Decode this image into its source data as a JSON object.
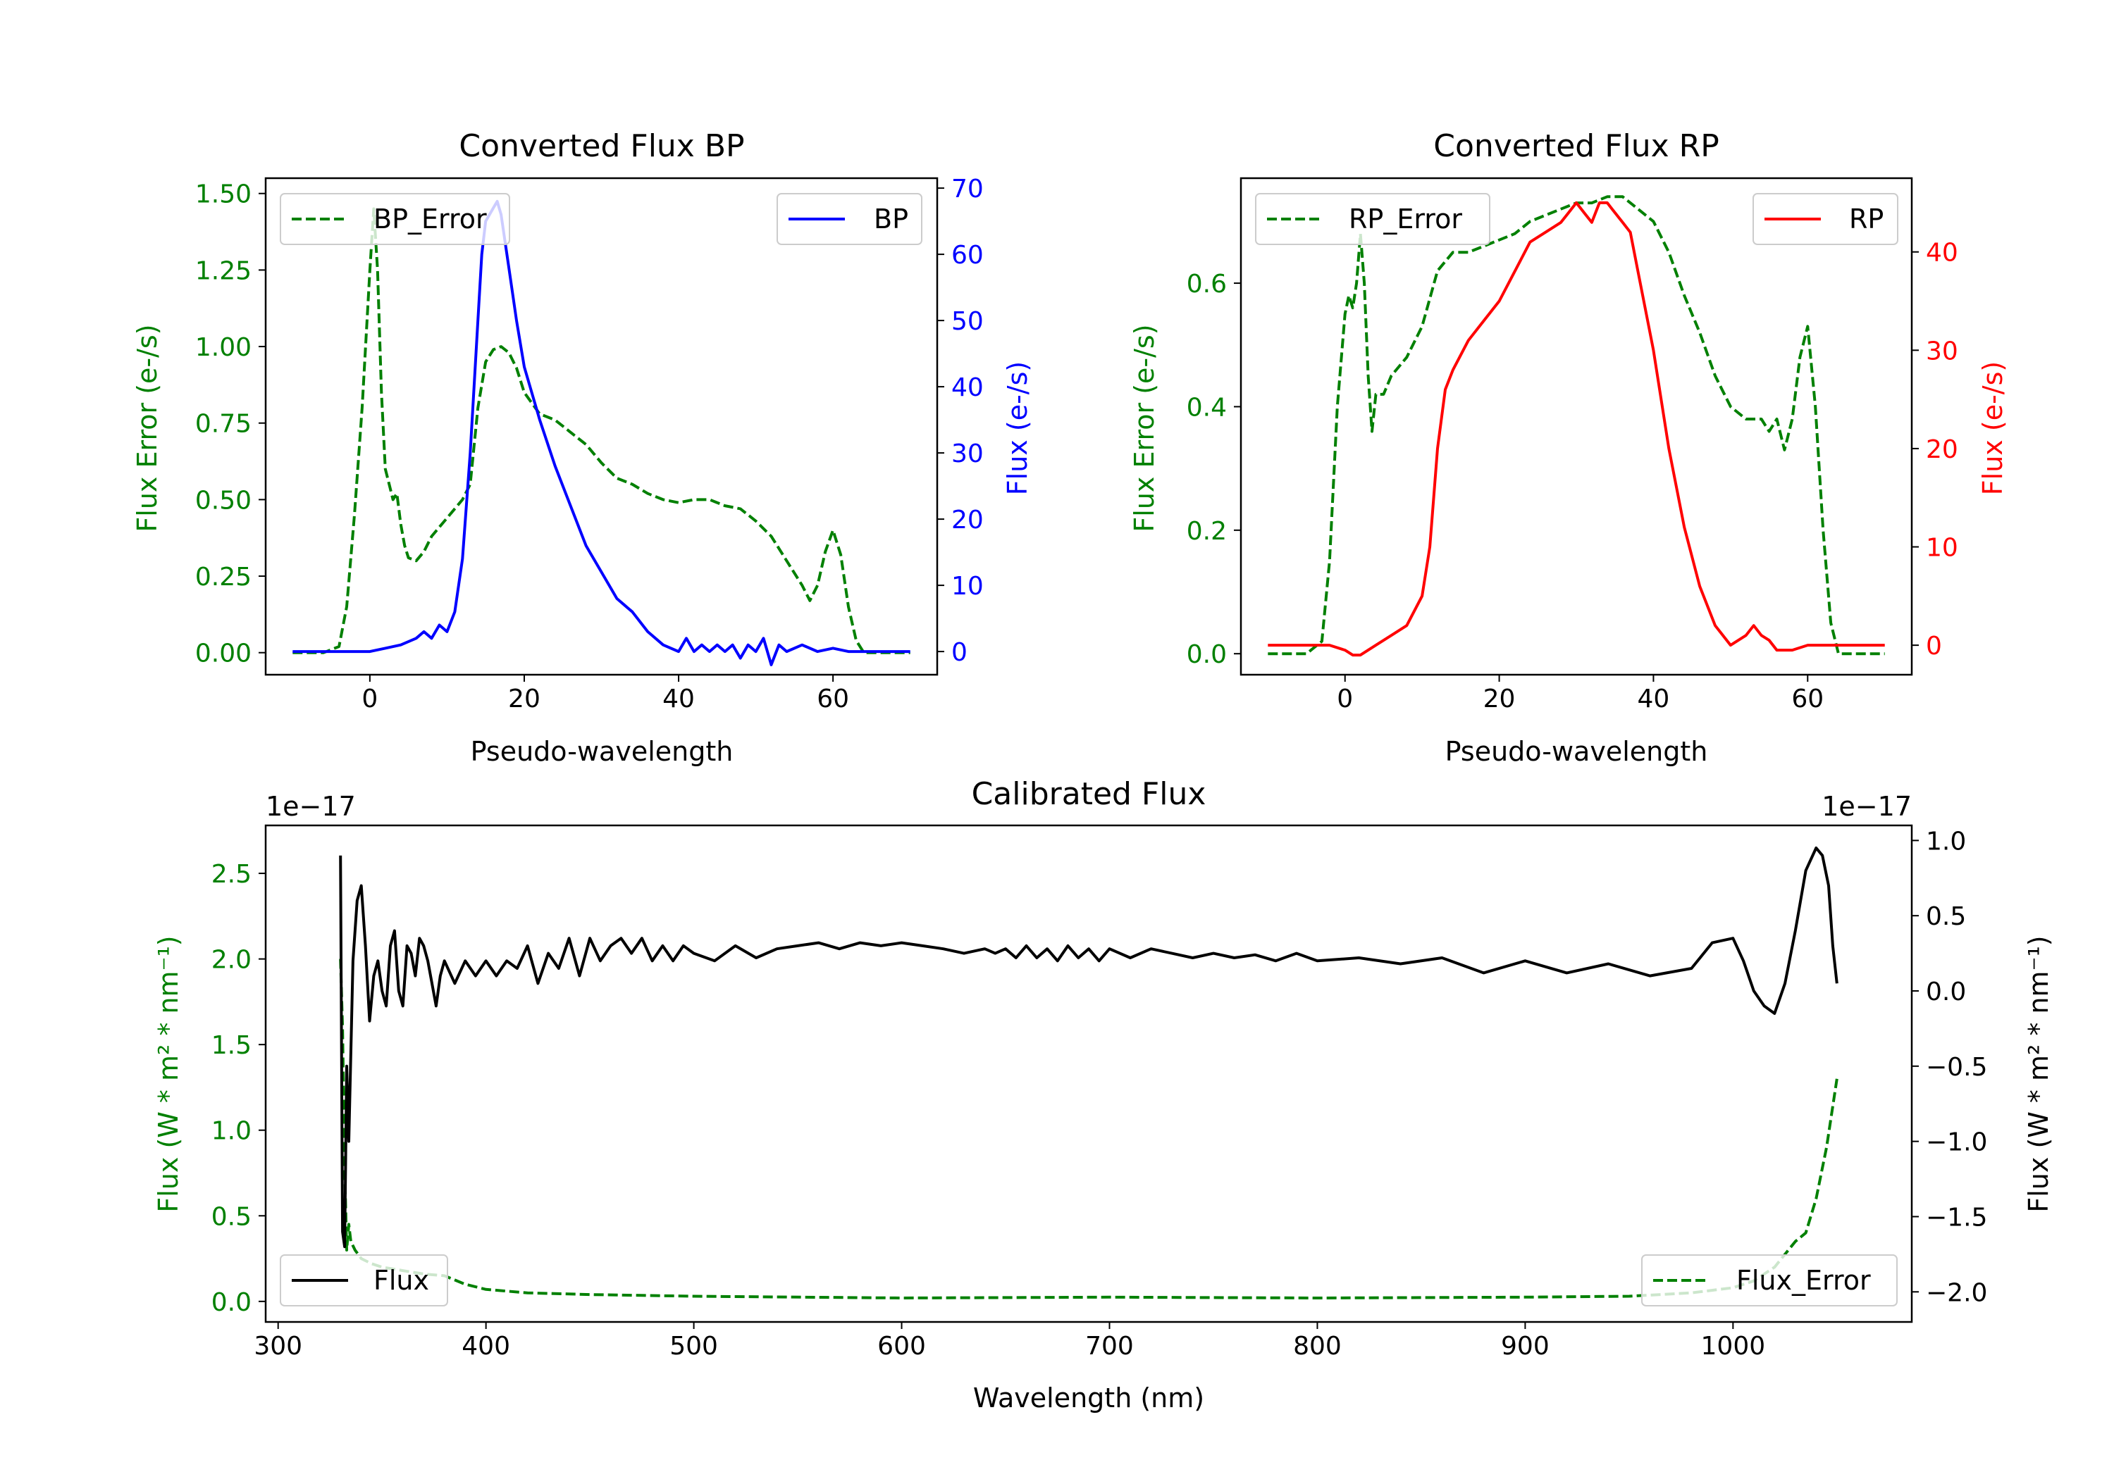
{
  "colors": {
    "green": "#008000",
    "blue": "#0000ff",
    "red": "#ff0000",
    "black": "#000000"
  },
  "chart_data": [
    {
      "id": "bp",
      "type": "line",
      "title": "Converted Flux BP",
      "xlabel": "Pseudo-wavelength",
      "ylabel_left": "Flux Error (e-/s)",
      "ylabel_right": "Flux (e-/s)",
      "xlim": [
        -13.5,
        73.5
      ],
      "ylim_left": [
        -0.072,
        1.55
      ],
      "ylim_right": [
        -3.5,
        71.5
      ],
      "xticks": [
        0,
        20,
        40,
        60
      ],
      "xtick_labels": [
        "0",
        "20",
        "40",
        "60"
      ],
      "yticks_left": [
        0,
        0.25,
        0.5,
        0.75,
        1.0,
        1.25,
        1.5
      ],
      "ytick_labels_left": [
        "0.00",
        "0.25",
        "0.50",
        "0.75",
        "1.00",
        "1.25",
        "1.50"
      ],
      "yticks_right": [
        0,
        10,
        20,
        30,
        40,
        50,
        60,
        70
      ],
      "ytick_labels_right": [
        "0",
        "10",
        "20",
        "30",
        "40",
        "50",
        "60",
        "70"
      ],
      "legend_left": "BP_Error",
      "legend_right": "BP",
      "series": [
        {
          "name": "BP_Error",
          "axis": "left",
          "style": "dashed",
          "color": "#008000",
          "x": [
            -10,
            -6,
            -4,
            -3,
            -2,
            -1,
            0,
            0.5,
            1,
            1.5,
            2,
            2.5,
            3,
            3.5,
            4,
            4.5,
            5,
            6,
            7,
            8,
            10,
            12,
            13,
            14,
            15,
            16,
            17,
            18,
            19,
            20,
            22,
            24,
            26,
            28,
            30,
            32,
            34,
            36,
            38,
            40,
            42,
            44,
            46,
            48,
            50,
            52,
            54,
            56,
            57,
            58,
            59,
            60,
            61,
            62,
            63,
            64,
            66,
            70
          ],
          "y": [
            0,
            0,
            0.02,
            0.15,
            0.45,
            0.8,
            1.25,
            1.45,
            1.25,
            0.85,
            0.6,
            0.55,
            0.5,
            0.52,
            0.42,
            0.35,
            0.31,
            0.3,
            0.33,
            0.38,
            0.44,
            0.5,
            0.55,
            0.8,
            0.95,
            0.99,
            1.0,
            0.98,
            0.93,
            0.85,
            0.78,
            0.76,
            0.72,
            0.68,
            0.62,
            0.57,
            0.55,
            0.52,
            0.5,
            0.49,
            0.5,
            0.5,
            0.48,
            0.47,
            0.43,
            0.38,
            0.3,
            0.22,
            0.17,
            0.22,
            0.33,
            0.4,
            0.32,
            0.15,
            0.04,
            0,
            0,
            0
          ]
        },
        {
          "name": "BP",
          "axis": "right",
          "style": "solid",
          "color": "#0000ff",
          "x": [
            -10,
            -5,
            0,
            2,
            4,
            6,
            7,
            8,
            9,
            10,
            11,
            12,
            13,
            14,
            14.5,
            15,
            15.5,
            16,
            16.5,
            17,
            18,
            19,
            20,
            22,
            24,
            26,
            28,
            30,
            32,
            34,
            36,
            38,
            40,
            41,
            42,
            43,
            44,
            45,
            46,
            47,
            48,
            49,
            50,
            51,
            52,
            53,
            54,
            56,
            58,
            60,
            62,
            66,
            70
          ],
          "y": [
            0,
            0,
            0,
            0.5,
            1,
            2,
            3,
            2,
            4,
            3,
            6,
            14,
            30,
            50,
            60,
            65,
            66,
            67,
            68,
            66,
            58,
            50,
            43,
            35,
            28,
            22,
            16,
            12,
            8,
            6,
            3,
            1,
            0,
            2,
            0,
            1,
            0,
            1,
            0,
            1,
            -1,
            1,
            0,
            2,
            -2,
            1,
            0,
            1,
            0,
            0.5,
            0,
            0,
            0
          ]
        }
      ]
    },
    {
      "id": "rp",
      "type": "line",
      "title": "Converted Flux RP",
      "xlabel": "Pseudo-wavelength",
      "ylabel_left": "Flux Error (e-/s)",
      "ylabel_right": "Flux (e-/s)",
      "xlim": [
        -13.5,
        73.5
      ],
      "ylim_left": [
        -0.034,
        0.77
      ],
      "ylim_right": [
        -3,
        47.5
      ],
      "xticks": [
        0,
        20,
        40,
        60
      ],
      "xtick_labels": [
        "0",
        "20",
        "40",
        "60"
      ],
      "yticks_left": [
        0,
        0.2,
        0.4,
        0.6
      ],
      "ytick_labels_left": [
        "0.0",
        "0.2",
        "0.4",
        "0.6"
      ],
      "yticks_right": [
        0,
        10,
        20,
        30,
        40
      ],
      "ytick_labels_right": [
        "0",
        "10",
        "20",
        "30",
        "40"
      ],
      "legend_left": "RP_Error",
      "legend_right": "RP",
      "series": [
        {
          "name": "RP_Error",
          "axis": "left",
          "style": "dashed",
          "color": "#008000",
          "x": [
            -10,
            -5,
            -3,
            -2,
            -1,
            0,
            0.5,
            1,
            1.5,
            2,
            2.5,
            3,
            3.5,
            4,
            5,
            6,
            8,
            10,
            12,
            14,
            16,
            18,
            20,
            22,
            24,
            26,
            28,
            30,
            32,
            34,
            36,
            38,
            40,
            42,
            44,
            46,
            48,
            50,
            52,
            54,
            55,
            56,
            57,
            58,
            59,
            60,
            61,
            62,
            63,
            64,
            66,
            70
          ],
          "y": [
            0,
            0,
            0.02,
            0.15,
            0.4,
            0.55,
            0.58,
            0.56,
            0.6,
            0.68,
            0.6,
            0.45,
            0.36,
            0.42,
            0.42,
            0.45,
            0.48,
            0.53,
            0.62,
            0.65,
            0.65,
            0.66,
            0.67,
            0.68,
            0.7,
            0.71,
            0.72,
            0.73,
            0.73,
            0.74,
            0.74,
            0.72,
            0.7,
            0.65,
            0.58,
            0.52,
            0.45,
            0.4,
            0.38,
            0.38,
            0.36,
            0.38,
            0.33,
            0.38,
            0.48,
            0.53,
            0.4,
            0.2,
            0.05,
            0,
            0,
            0
          ]
        },
        {
          "name": "RP",
          "axis": "right",
          "style": "solid",
          "color": "#ff0000",
          "x": [
            -10,
            -5,
            -2,
            0,
            1,
            2,
            4,
            6,
            8,
            10,
            11,
            12,
            13,
            14,
            16,
            18,
            20,
            22,
            24,
            26,
            28,
            29,
            30,
            31,
            32,
            33,
            34,
            35,
            36,
            37,
            38,
            40,
            42,
            44,
            46,
            48,
            50,
            52,
            53,
            54,
            55,
            56,
            58,
            60,
            65,
            70
          ],
          "y": [
            0,
            0,
            0,
            -0.5,
            -1,
            -1,
            0,
            1,
            2,
            5,
            10,
            20,
            26,
            28,
            31,
            33,
            35,
            38,
            41,
            42,
            43,
            44,
            45,
            44,
            43,
            45,
            45,
            44,
            43,
            42,
            38,
            30,
            20,
            12,
            6,
            2,
            0,
            1,
            2,
            1,
            0.5,
            -0.5,
            -0.5,
            0,
            0,
            0
          ]
        }
      ]
    },
    {
      "id": "cal",
      "type": "line",
      "title": "Calibrated Flux",
      "xlabel": "Wavelength (nm)",
      "ylabel_left": "Flux (W * m² * nm⁻¹)",
      "ylabel_right": "Flux (W * m² * nm⁻¹)",
      "offset_left": "1e−17",
      "offset_right": "1e−17",
      "xlim": [
        294,
        1086
      ],
      "ylim_left": [
        -0.12,
        2.78
      ],
      "ylim_right": [
        -2.2,
        1.1
      ],
      "xticks": [
        300,
        400,
        500,
        600,
        700,
        800,
        900,
        1000
      ],
      "xtick_labels": [
        "300",
        "400",
        "500",
        "600",
        "700",
        "800",
        "900",
        "1000"
      ],
      "yticks_left": [
        0,
        0.5,
        1.0,
        1.5,
        2.0,
        2.5
      ],
      "ytick_labels_left": [
        "0.0",
        "0.5",
        "1.0",
        "1.5",
        "2.0",
        "2.5"
      ],
      "yticks_right": [
        -2.0,
        -1.5,
        -1.0,
        -0.5,
        0.0,
        0.5,
        1.0
      ],
      "ytick_labels_right": [
        "−2.0",
        "−1.5",
        "−1.0",
        "−0.5",
        "0.0",
        "0.5",
        "1.0"
      ],
      "legend_left": "Flux",
      "legend_right": "Flux_Error",
      "series": [
        {
          "name": "Flux_Error",
          "axis": "left",
          "style": "dashed",
          "color": "#008000",
          "x": [
            330,
            331,
            332,
            333,
            334,
            335,
            337,
            340,
            345,
            350,
            360,
            370,
            380,
            390,
            400,
            420,
            450,
            500,
            600,
            700,
            800,
            900,
            950,
            980,
            1000,
            1010,
            1020,
            1030,
            1035,
            1040,
            1045,
            1050
          ],
          "y": [
            2.0,
            1.6,
            0.8,
            0.3,
            0.45,
            0.35,
            0.3,
            0.25,
            0.22,
            0.2,
            0.18,
            0.16,
            0.15,
            0.1,
            0.07,
            0.05,
            0.04,
            0.03,
            0.02,
            0.025,
            0.02,
            0.025,
            0.03,
            0.05,
            0.08,
            0.12,
            0.2,
            0.35,
            0.4,
            0.6,
            0.9,
            1.3
          ]
        },
        {
          "name": "Flux",
          "axis": "right",
          "style": "solid",
          "color": "#000000",
          "x": [
            330,
            331,
            332,
            333,
            334,
            336,
            338,
            340,
            342,
            344,
            346,
            348,
            350,
            352,
            354,
            356,
            358,
            360,
            362,
            364,
            366,
            368,
            370,
            372,
            374,
            376,
            378,
            380,
            385,
            390,
            395,
            400,
            405,
            410,
            415,
            420,
            425,
            430,
            435,
            440,
            445,
            450,
            455,
            460,
            465,
            470,
            475,
            480,
            485,
            490,
            495,
            500,
            510,
            520,
            530,
            540,
            550,
            560,
            570,
            580,
            590,
            600,
            610,
            620,
            630,
            640,
            645,
            650,
            655,
            660,
            665,
            670,
            675,
            680,
            685,
            690,
            695,
            700,
            710,
            720,
            730,
            740,
            750,
            760,
            770,
            780,
            790,
            800,
            820,
            840,
            860,
            880,
            900,
            920,
            940,
            960,
            980,
            990,
            1000,
            1005,
            1010,
            1015,
            1020,
            1025,
            1030,
            1035,
            1040,
            1043,
            1046,
            1048,
            1050
          ],
          "y": [
            0.9,
            -1.6,
            -1.7,
            -0.5,
            -1.0,
            0.2,
            0.6,
            0.7,
            0.3,
            -0.2,
            0.1,
            0.2,
            0.0,
            -0.1,
            0.3,
            0.4,
            0.0,
            -0.1,
            0.3,
            0.25,
            0.1,
            0.35,
            0.3,
            0.2,
            0.05,
            -0.1,
            0.1,
            0.2,
            0.05,
            0.2,
            0.1,
            0.2,
            0.1,
            0.2,
            0.15,
            0.3,
            0.05,
            0.25,
            0.15,
            0.35,
            0.1,
            0.35,
            0.2,
            0.3,
            0.35,
            0.25,
            0.35,
            0.2,
            0.3,
            0.2,
            0.3,
            0.25,
            0.2,
            0.3,
            0.22,
            0.28,
            0.3,
            0.32,
            0.28,
            0.32,
            0.3,
            0.32,
            0.3,
            0.28,
            0.25,
            0.28,
            0.25,
            0.28,
            0.22,
            0.3,
            0.22,
            0.28,
            0.2,
            0.3,
            0.22,
            0.28,
            0.2,
            0.28,
            0.22,
            0.28,
            0.25,
            0.22,
            0.25,
            0.22,
            0.24,
            0.2,
            0.25,
            0.2,
            0.22,
            0.18,
            0.22,
            0.12,
            0.2,
            0.12,
            0.18,
            0.1,
            0.15,
            0.32,
            0.35,
            0.2,
            0.0,
            -0.1,
            -0.15,
            0.05,
            0.4,
            0.8,
            0.95,
            0.9,
            0.7,
            0.3,
            0.05
          ]
        }
      ]
    }
  ]
}
